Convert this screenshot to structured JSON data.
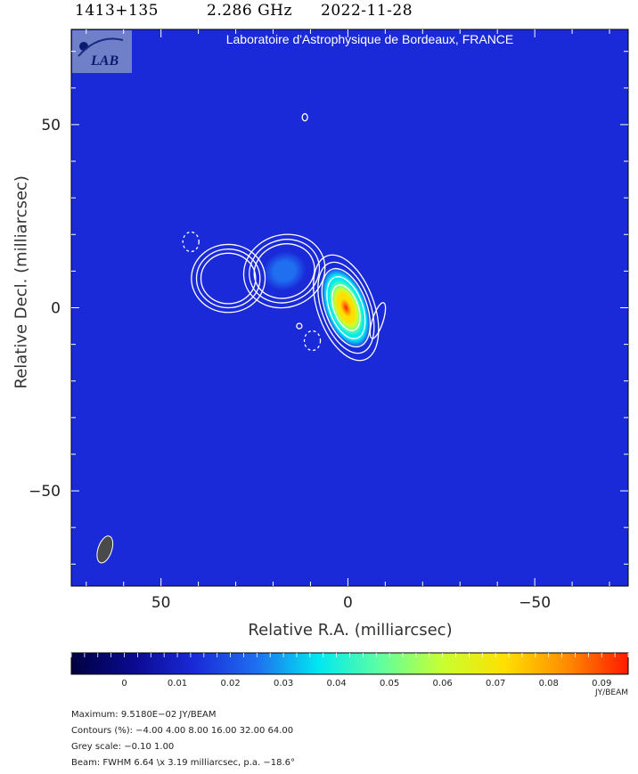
{
  "header": {
    "source": "1413+135",
    "frequency": "2.286 GHz",
    "date": "2022-11-28"
  },
  "banner": {
    "institute": "Laboratoire d'Astrophysique de Bordeaux, FRANCE",
    "logo_text": "LAB"
  },
  "chart_data": {
    "type": "heatmap",
    "xlabel": "Relative R.A. (milliarcsec)",
    "ylabel": "Relative Decl. (milliarcsec)",
    "xlim": [
      74,
      -75
    ],
    "ylim": [
      -76,
      76
    ],
    "x_reversed": true,
    "xticks": [
      50,
      0,
      -50
    ],
    "yticks": [
      50,
      0,
      -50
    ],
    "background_color": "#1a2ad8",
    "components": [
      {
        "x": 0.5,
        "y": 0,
        "peak": 0.095,
        "sx": 2.6,
        "sy": 5.2,
        "angle": -20
      },
      {
        "x": 17,
        "y": 10,
        "peak": 0.022,
        "sx": 3.8,
        "sy": 3.4,
        "angle": -20
      },
      {
        "x": 32,
        "y": 8,
        "peak": 0.018,
        "sx": 3.4,
        "sy": 3.2,
        "angle": 0
      }
    ],
    "negative_contours": [
      {
        "x": 42,
        "y": 18
      },
      {
        "x": 9.5,
        "y": -9
      }
    ],
    "weak_contours": [
      {
        "x": 11.5,
        "y": 52
      },
      {
        "x": 13,
        "y": -5
      },
      {
        "x": -8,
        "y": -3.5
      }
    ],
    "beam": {
      "fwhm_major": 6.64,
      "fwhm_minor": 3.19,
      "pa": -18.6
    },
    "colorbar": {
      "min": -0.01,
      "max": 0.095,
      "ticks": [
        0,
        0.01,
        0.02,
        0.03,
        0.04,
        0.05,
        0.06,
        0.07,
        0.08,
        0.09
      ],
      "tick_labels": [
        "0",
        "0.01",
        "0.02",
        "0.03",
        "0.04",
        "0.05",
        "0.06",
        "0.07",
        "0.08",
        "0.09"
      ],
      "unit": "JY/BEAM",
      "colors": [
        "#000040",
        "#0a0a90",
        "#1a2ad8",
        "#1f6ff0",
        "#00e8f0",
        "#60ffa0",
        "#c8ff30",
        "#ffe000",
        "#ff8c00",
        "#ff1a00"
      ]
    },
    "contour_levels_pct": [
      -4.0,
      4.0,
      8.0,
      16.0,
      32.0,
      64.0
    ]
  },
  "footer": {
    "maximum": "Maximum: 9.5180E−02 JY/BEAM",
    "contours": "Contours (%): −4.00 4.00 8.00 16.00 32.00 64.00",
    "grey": "Grey scale: −0.10 1.00",
    "beam": "Beam: FWHM 6.64 \\x 3.19 milliarcsec, p.a. −18.6°"
  }
}
